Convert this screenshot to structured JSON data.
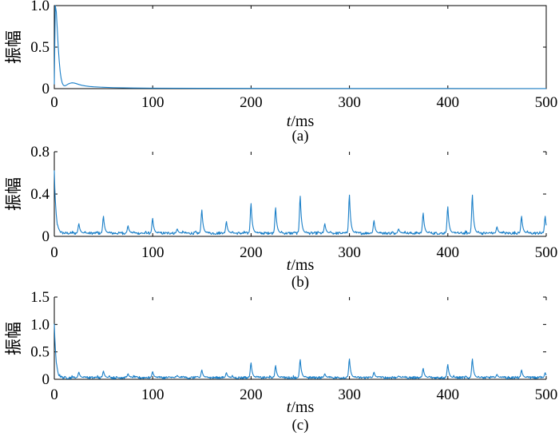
{
  "chart_data": [
    {
      "type": "line",
      "panel_label": "(a)",
      "ylabel": "振幅",
      "xlabel_var": "t",
      "xlabel_unit": "/ms",
      "xlim": [
        0,
        500
      ],
      "ylim": [
        0,
        1.0
      ],
      "x_ticks": [
        "0",
        "100",
        "200",
        "300",
        "400",
        "500"
      ],
      "y_ticks": [
        "0",
        "0.5",
        "1.0"
      ],
      "y_tick_values": [
        0,
        0.5,
        1.0
      ],
      "box": true,
      "series": [
        {
          "color": "#1a7fc8",
          "x": [
            0,
            1,
            2,
            3,
            4,
            5,
            6,
            7,
            8,
            9,
            10,
            11,
            12,
            14,
            16,
            18,
            20,
            22,
            25,
            28,
            32,
            36,
            40,
            50,
            60,
            80,
            100,
            150,
            200,
            300,
            400,
            500
          ],
          "y": [
            0.05,
            1.0,
            0.93,
            0.72,
            0.5,
            0.33,
            0.2,
            0.12,
            0.07,
            0.045,
            0.035,
            0.035,
            0.04,
            0.055,
            0.065,
            0.07,
            0.068,
            0.062,
            0.05,
            0.04,
            0.032,
            0.026,
            0.022,
            0.016,
            0.012,
            0.008,
            0.006,
            0.004,
            0.003,
            0.002,
            0.0015,
            0.001
          ]
        }
      ]
    },
    {
      "type": "line",
      "panel_label": "(b)",
      "ylabel": "振幅",
      "xlabel_var": "t",
      "xlabel_unit": "/ms",
      "xlim": [
        0,
        500
      ],
      "ylim": [
        0,
        0.8
      ],
      "x_ticks": [
        "0",
        "100",
        "200",
        "300",
        "400",
        "500"
      ],
      "y_ticks": [
        "0",
        "0.4",
        "0.8"
      ],
      "y_tick_values": [
        0,
        0.4,
        0.8
      ],
      "box": false,
      "baseline": 0.03,
      "start_value": 0.62,
      "peaks": [
        {
          "x": 25,
          "y": 0.12
        },
        {
          "x": 50,
          "y": 0.19
        },
        {
          "x": 75,
          "y": 0.1
        },
        {
          "x": 100,
          "y": 0.17
        },
        {
          "x": 125,
          "y": 0.07
        },
        {
          "x": 150,
          "y": 0.25
        },
        {
          "x": 175,
          "y": 0.14
        },
        {
          "x": 200,
          "y": 0.31
        },
        {
          "x": 225,
          "y": 0.27
        },
        {
          "x": 250,
          "y": 0.38
        },
        {
          "x": 275,
          "y": 0.12
        },
        {
          "x": 300,
          "y": 0.39
        },
        {
          "x": 325,
          "y": 0.15
        },
        {
          "x": 350,
          "y": 0.07
        },
        {
          "x": 375,
          "y": 0.22
        },
        {
          "x": 400,
          "y": 0.28
        },
        {
          "x": 425,
          "y": 0.39
        },
        {
          "x": 450,
          "y": 0.09
        },
        {
          "x": 475,
          "y": 0.19
        },
        {
          "x": 499,
          "y": 0.19
        }
      ]
    },
    {
      "type": "line",
      "panel_label": "(c)",
      "ylabel": "振幅",
      "xlabel_var": "t",
      "xlabel_unit": "/ms",
      "xlim": [
        0,
        500
      ],
      "ylim": [
        0,
        1.5
      ],
      "x_ticks": [
        "0",
        "100",
        "200",
        "300",
        "400",
        "500"
      ],
      "y_ticks": [
        "0",
        "0.5",
        "1.0",
        "1.5"
      ],
      "y_tick_values": [
        0,
        0.5,
        1.0,
        1.5
      ],
      "box": false,
      "baseline": 0.03,
      "start_value": 1.03,
      "peaks": [
        {
          "x": 25,
          "y": 0.13
        },
        {
          "x": 50,
          "y": 0.15
        },
        {
          "x": 75,
          "y": 0.1
        },
        {
          "x": 100,
          "y": 0.14
        },
        {
          "x": 125,
          "y": 0.07
        },
        {
          "x": 150,
          "y": 0.17
        },
        {
          "x": 175,
          "y": 0.12
        },
        {
          "x": 200,
          "y": 0.3
        },
        {
          "x": 225,
          "y": 0.25
        },
        {
          "x": 250,
          "y": 0.36
        },
        {
          "x": 275,
          "y": 0.1
        },
        {
          "x": 300,
          "y": 0.37
        },
        {
          "x": 325,
          "y": 0.13
        },
        {
          "x": 350,
          "y": 0.06
        },
        {
          "x": 375,
          "y": 0.2
        },
        {
          "x": 400,
          "y": 0.27
        },
        {
          "x": 425,
          "y": 0.37
        },
        {
          "x": 450,
          "y": 0.09
        },
        {
          "x": 475,
          "y": 0.17
        },
        {
          "x": 499,
          "y": 0.12
        }
      ]
    }
  ]
}
